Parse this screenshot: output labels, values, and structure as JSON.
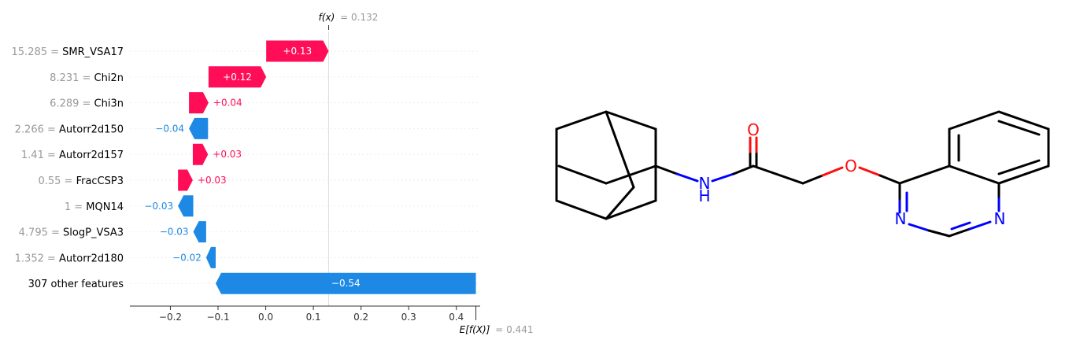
{
  "chart_data": {
    "type": "waterfall",
    "fx_value": "0.132",
    "ex_value": "0.441",
    "fx_label_var": "f(x)",
    "ex_label_var": "E[f(X)]",
    "xlim": [
      -0.285,
      0.445
    ],
    "x_ticks": [
      "−0.2",
      "−0.1",
      "0.0",
      "0.1",
      "0.2",
      "0.3",
      "0.4"
    ],
    "x_tick_values": [
      -0.2,
      -0.1,
      0.0,
      0.1,
      0.2,
      0.3,
      0.4
    ],
    "features": [
      {
        "value": "15.285",
        "name": "SMR_VSA17",
        "contribution": 0.13,
        "label": "+0.13",
        "start": 0.001,
        "end": 0.132
      },
      {
        "value": "8.231",
        "name": "Chi2n",
        "contribution": 0.12,
        "label": "+0.12",
        "start": -0.12,
        "end": 0.001
      },
      {
        "value": "6.289",
        "name": "Chi3n",
        "contribution": 0.04,
        "label": "+0.04",
        "start": -0.161,
        "end": -0.12
      },
      {
        "value": "2.266",
        "name": "Autorr2d150",
        "contribution": -0.04,
        "label": "−0.04",
        "start": -0.121,
        "end": -0.161
      },
      {
        "value": "1.41",
        "name": "Autorr2d157",
        "contribution": 0.03,
        "label": "+0.03",
        "start": -0.153,
        "end": -0.121
      },
      {
        "value": "0.55",
        "name": "FracCSP3",
        "contribution": 0.03,
        "label": "+0.03",
        "start": -0.184,
        "end": -0.153
      },
      {
        "value": "1",
        "name": "MQN14",
        "contribution": -0.03,
        "label": "−0.03",
        "start": -0.152,
        "end": -0.184
      },
      {
        "value": "4.795",
        "name": "SlogP_VSA3",
        "contribution": -0.03,
        "label": "−0.03",
        "start": -0.125,
        "end": -0.152
      },
      {
        "value": "1.352",
        "name": "Autorr2d180",
        "contribution": -0.02,
        "label": "−0.02",
        "start": -0.105,
        "end": -0.125
      },
      {
        "value": "",
        "name": "307 other features",
        "contribution": -0.54,
        "label": "−0.54",
        "start": 0.441,
        "end": -0.105
      }
    ],
    "colors": {
      "positive": "#ff0d57",
      "negative": "#1e88e5",
      "pos_text": "#ff0d57",
      "neg_text": "#1e88e5"
    }
  },
  "molecule": {
    "atom_labels": {
      "oxygen_carbonyl": "O",
      "oxygen_ether": "O",
      "nitrogen_amide": "N",
      "amide_h": "H",
      "ring_n1": "N",
      "ring_n2": "N"
    },
    "colors": {
      "bond": "#000000",
      "oxygen": "#ff0d0d",
      "nitrogen": "#0000ff"
    }
  }
}
